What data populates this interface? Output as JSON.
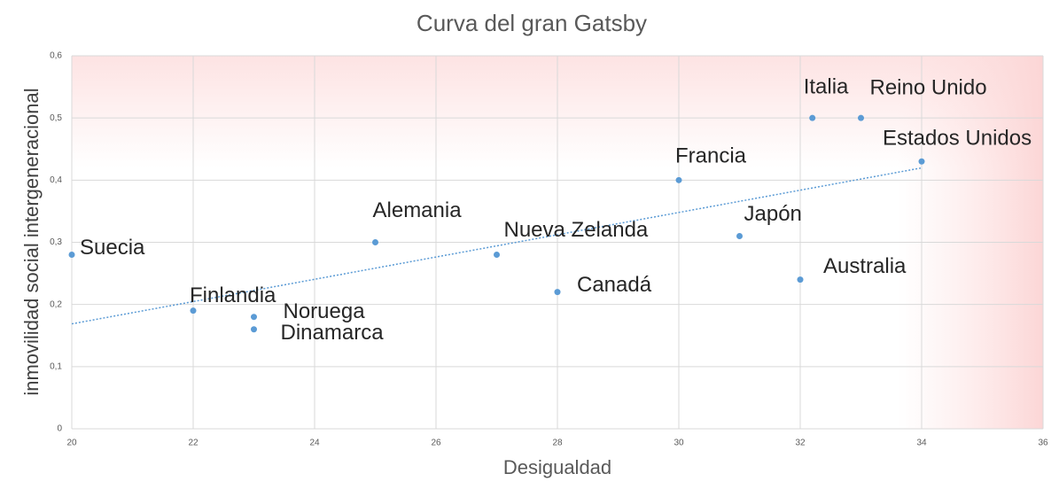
{
  "chart_data": {
    "type": "scatter",
    "title": "Curva del gran Gatsby",
    "x_label": "Desigualdad",
    "y_label": "inmovilidad social intergeneracional",
    "series": [
      {
        "color": "#5b9bd5",
        "x": [
          20,
          22,
          23,
          23,
          25,
          27,
          28,
          30,
          31,
          32,
          32.2,
          33,
          34
        ],
        "values": [
          0.28,
          0.19,
          0.18,
          0.16,
          0.3,
          0.28,
          0.22,
          0.4,
          0.31,
          0.24,
          0.5,
          0.5,
          0.43
        ],
        "point_labels": [
          "Suecia",
          "Finlandia",
          "Noruega",
          "Dinamarca",
          "Alemania",
          "Nueva Zelanda",
          "Canadá",
          "Francia",
          "Japón",
          "Australia",
          "Italia",
          "Reino Unido",
          "Estados Unidos"
        ]
      }
    ],
    "trendline": "linear",
    "xlim": [
      20,
      36
    ],
    "xticks": [
      20,
      22,
      24,
      26,
      28,
      30,
      32,
      34,
      36
    ],
    "ylim": [
      0,
      0.6
    ],
    "yticks": [
      0,
      {
        "value": 0.1,
        "label": "0,1"
      },
      {
        "value": 0.2,
        "label": "0,2"
      },
      {
        "value": 0.3,
        "label": "0,3"
      },
      {
        "value": 0.4,
        "label": "0,4"
      },
      {
        "value": 0.5,
        "label": "0,5"
      },
      {
        "value": 0.6,
        "label": "0,6"
      }
    ],
    "grid": true
  }
}
